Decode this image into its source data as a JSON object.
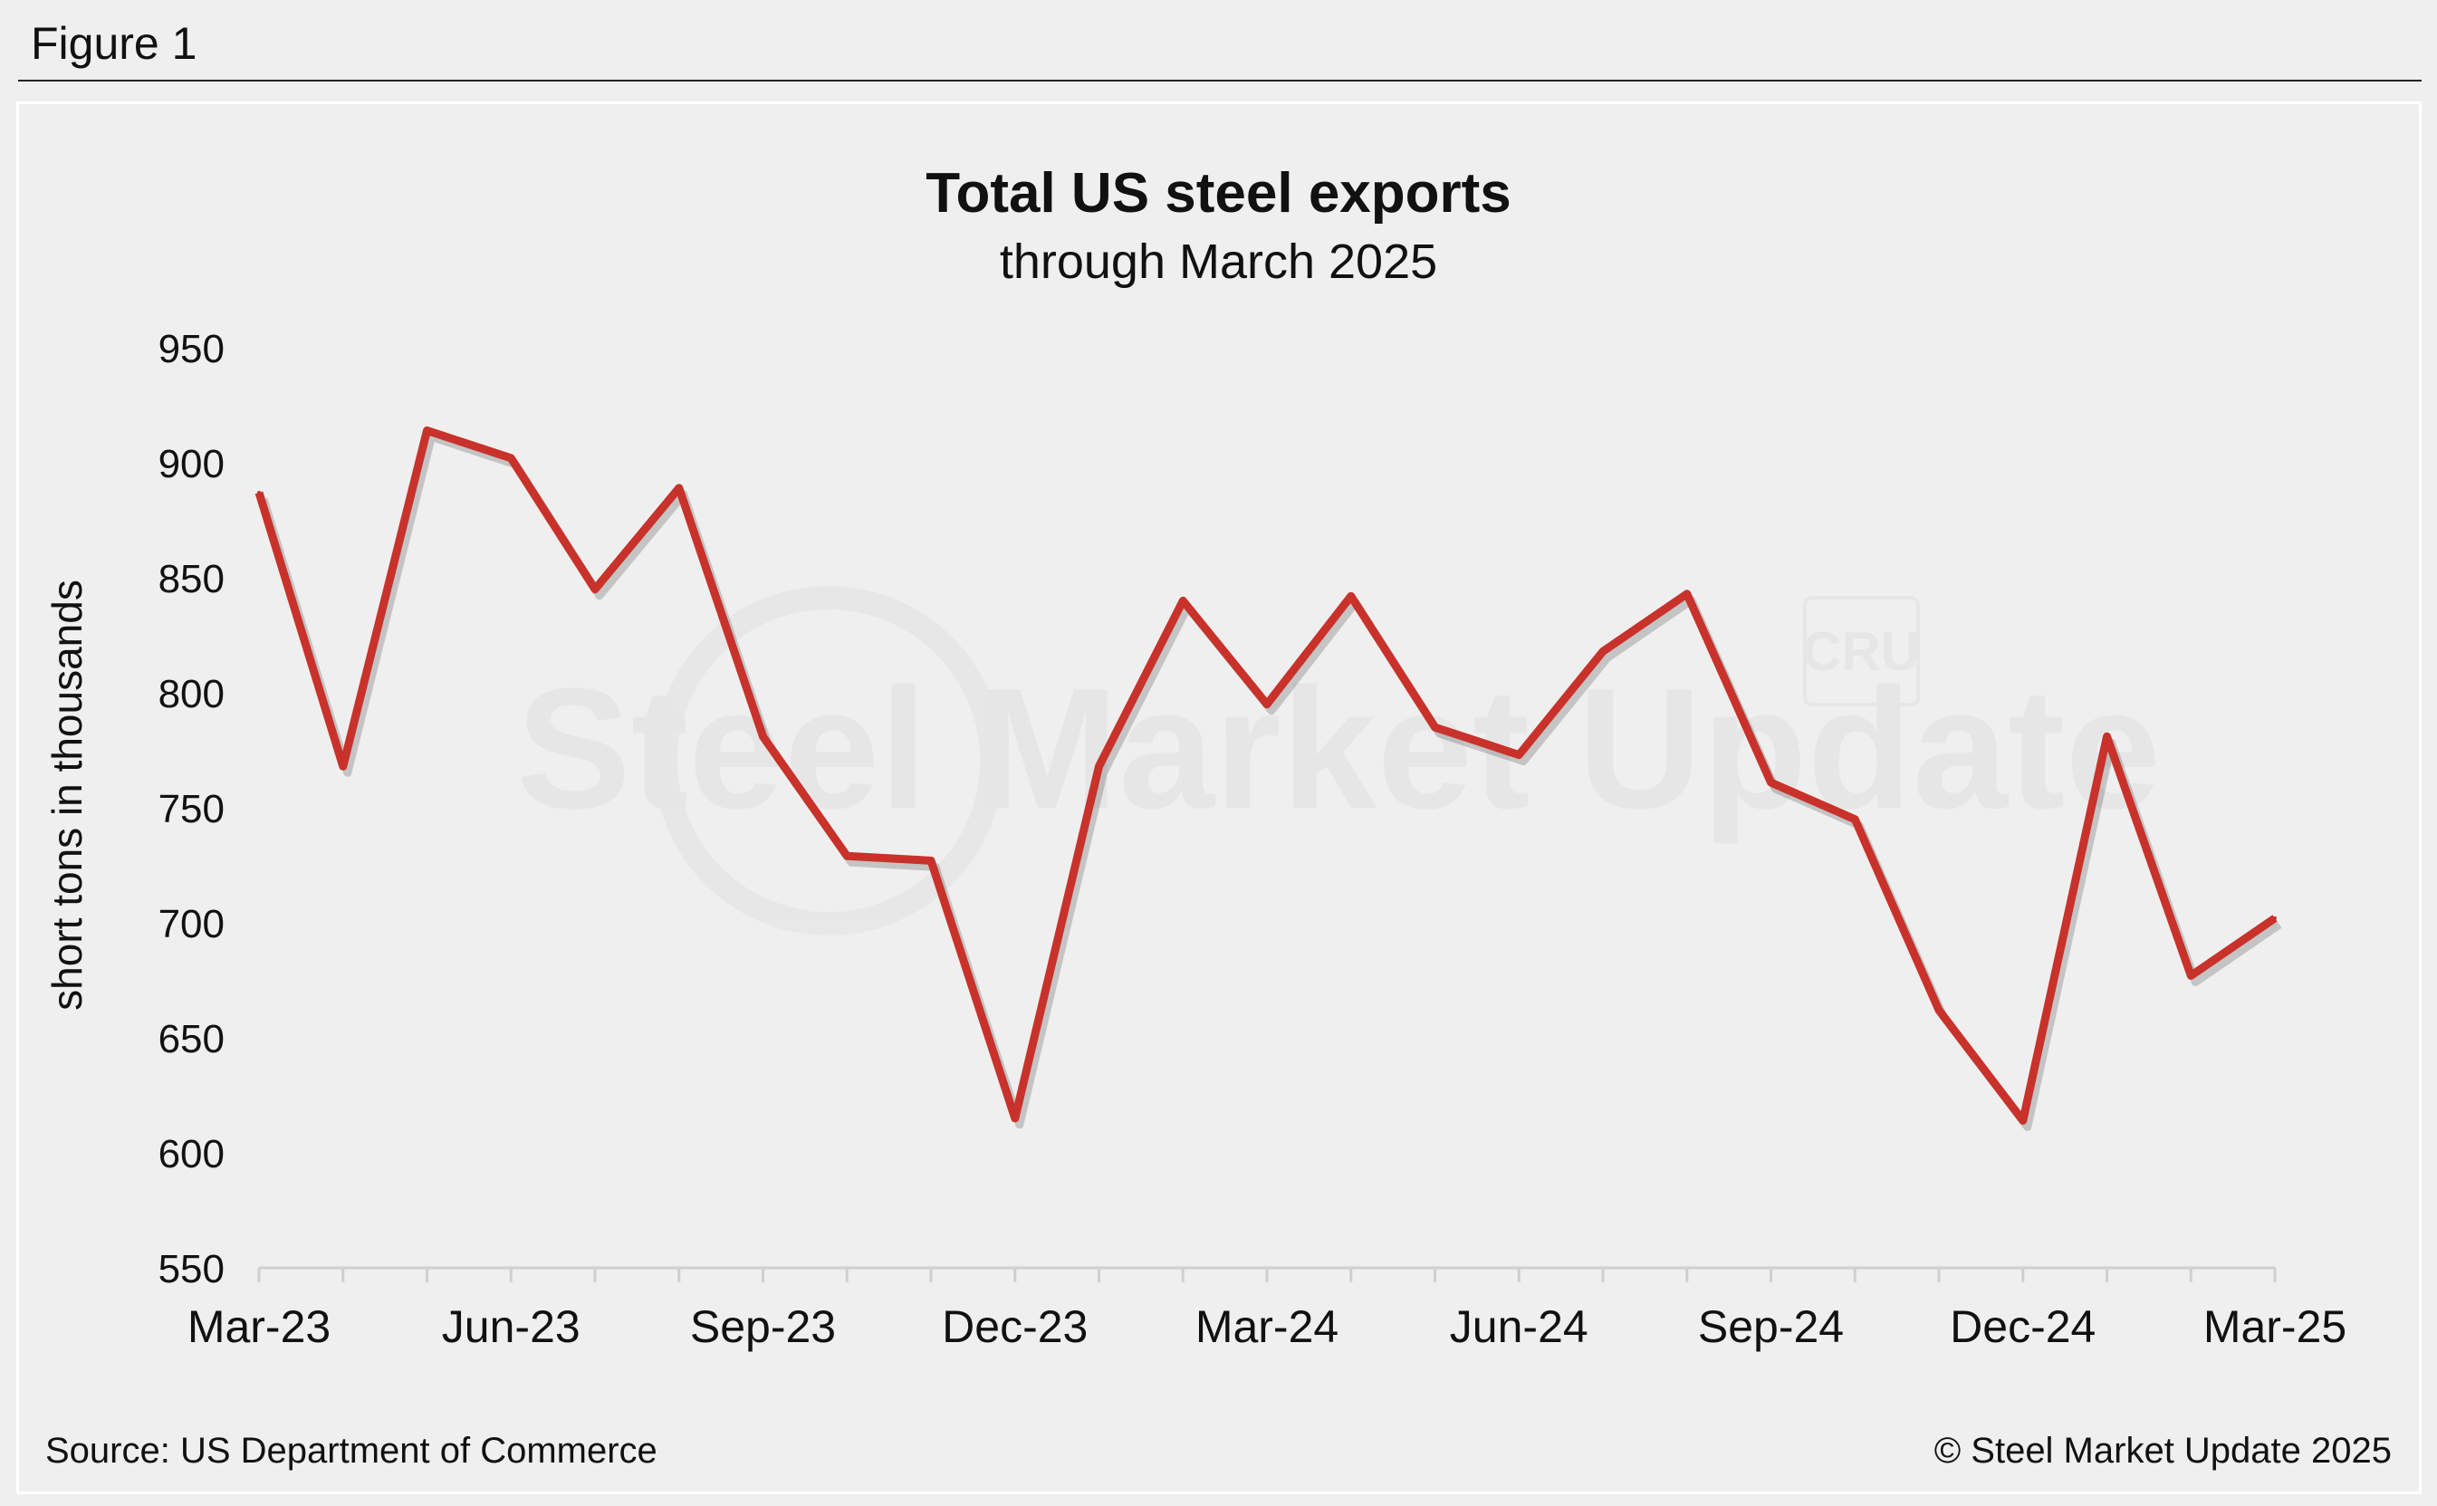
{
  "figure_label": "Figure 1",
  "source": "Source: US Department of Commerce",
  "copyright": "© Steel Market Update 2025",
  "watermark": {
    "brand_text": "Steel Market Update",
    "logo_text": "CRU"
  },
  "colors": {
    "line": "#c8322b",
    "background": "#efefef",
    "axis": "#cfcfcf",
    "text": "#111111"
  },
  "chart_data": {
    "type": "line",
    "title": "Total US steel exports",
    "subtitle": "through March 2025",
    "xlabel": "",
    "ylabel": "short tons in thousands",
    "ylim": [
      550,
      950
    ],
    "yticks": [
      550,
      600,
      650,
      700,
      750,
      800,
      850,
      900,
      950
    ],
    "grid": false,
    "categories": [
      "Mar-23",
      "Apr-23",
      "May-23",
      "Jun-23",
      "Jul-23",
      "Aug-23",
      "Sep-23",
      "Oct-23",
      "Nov-23",
      "Dec-23",
      "Jan-24",
      "Feb-24",
      "Mar-24",
      "Apr-24",
      "May-24",
      "Jun-24",
      "Jul-24",
      "Aug-24",
      "Sep-24",
      "Oct-24",
      "Nov-24",
      "Dec-24",
      "Jan-25",
      "Feb-25",
      "Mar-25"
    ],
    "xtick_labels": [
      "Mar-23",
      "Jun-23",
      "Sep-23",
      "Dec-23",
      "Mar-24",
      "Jun-24",
      "Sep-24",
      "Dec-24",
      "Mar-25"
    ],
    "series": [
      {
        "name": "Total US steel exports",
        "values": [
          887,
          768,
          914,
          902,
          845,
          889,
          781,
          729,
          727,
          615,
          768,
          840,
          795,
          842,
          785,
          773,
          818,
          843,
          761,
          745,
          662,
          614,
          781,
          677,
          702
        ]
      }
    ]
  }
}
